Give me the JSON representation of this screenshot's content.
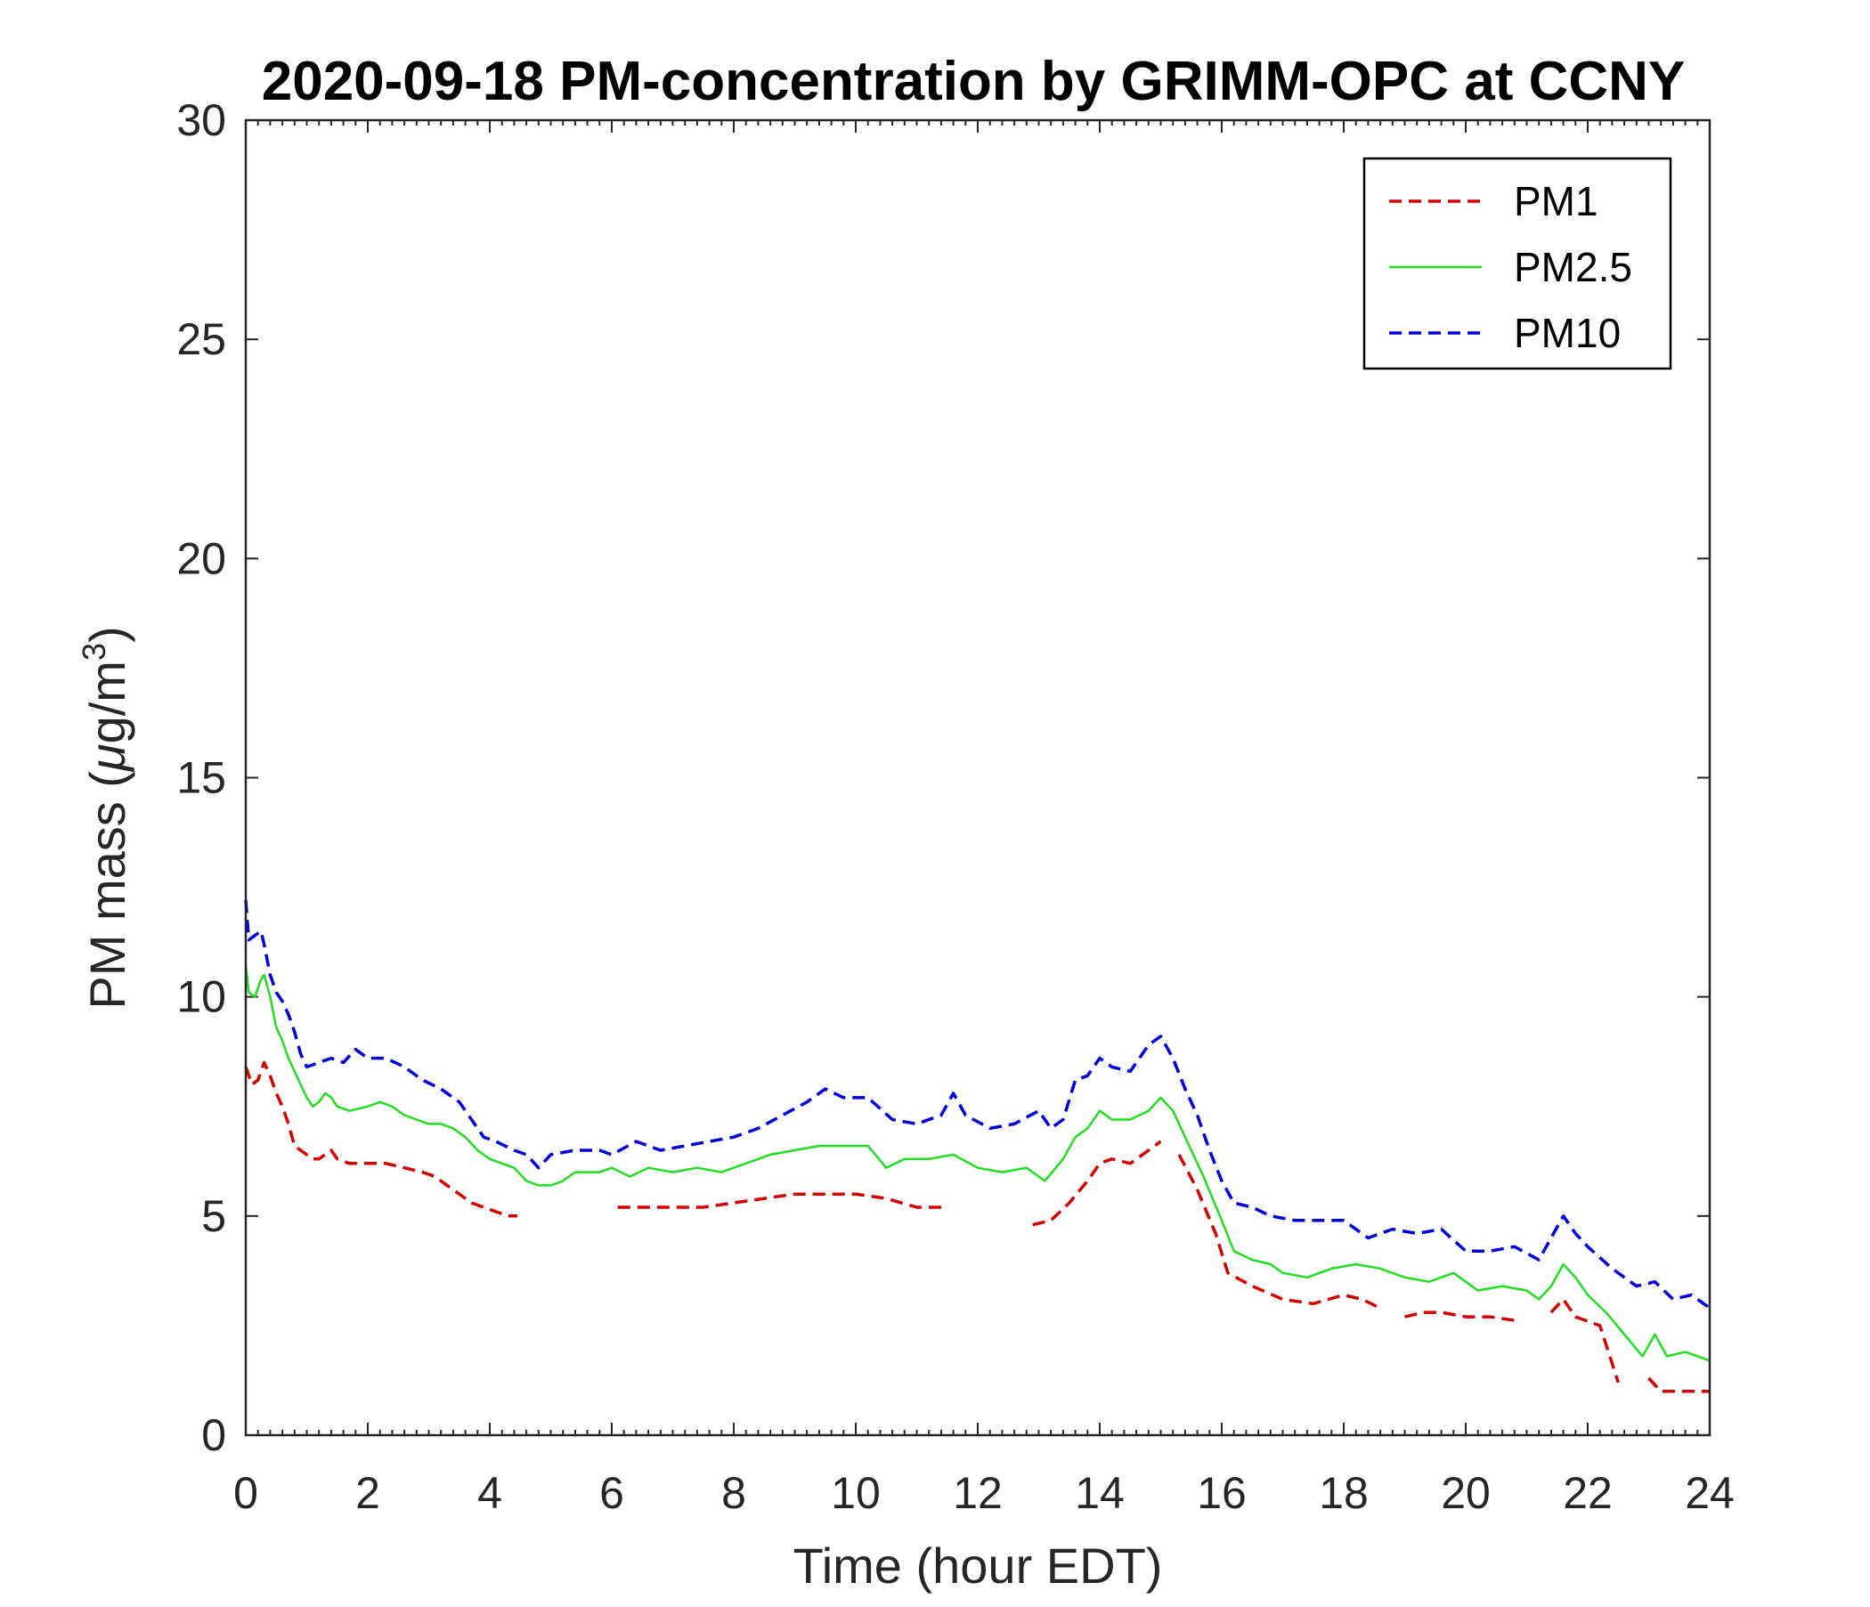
{
  "chart_data": {
    "type": "line",
    "title": "2020-09-18 PM-concentration by GRIMM-OPC at CCNY",
    "xlabel": "Time (hour EDT)",
    "ylabel": "PM mass (μg/m3)",
    "ylabel_parts": {
      "main": "PM mass (",
      "mu": "μ",
      "unit": "g/m",
      "sup": "3",
      "close": ")"
    },
    "xlim": [
      0,
      24
    ],
    "ylim": [
      0,
      30
    ],
    "xticks": [
      0,
      2,
      4,
      6,
      8,
      10,
      12,
      14,
      16,
      18,
      20,
      22,
      24
    ],
    "yticks": [
      0,
      5,
      10,
      15,
      20,
      25,
      30
    ],
    "grid": false,
    "legend_position": "top-right",
    "series": [
      {
        "name": "PM1",
        "color": "#d40000",
        "style": "dashed",
        "segments": [
          [
            [
              0,
              8.4
            ],
            [
              0.1,
              8.0
            ],
            [
              0.2,
              8.1
            ],
            [
              0.3,
              8.5
            ],
            [
              0.4,
              8.2
            ],
            [
              0.5,
              7.8
            ],
            [
              0.6,
              7.5
            ],
            [
              0.7,
              7.1
            ],
            [
              0.8,
              6.6
            ],
            [
              0.9,
              6.5
            ],
            [
              1.0,
              6.4
            ],
            [
              1.1,
              6.3
            ],
            [
              1.2,
              6.3
            ],
            [
              1.3,
              6.4
            ],
            [
              1.4,
              6.5
            ],
            [
              1.5,
              6.3
            ],
            [
              1.7,
              6.2
            ],
            [
              2.0,
              6.2
            ],
            [
              2.3,
              6.2
            ],
            [
              2.6,
              6.1
            ],
            [
              2.9,
              6.0
            ],
            [
              3.1,
              5.9
            ],
            [
              3.3,
              5.7
            ],
            [
              3.5,
              5.5
            ],
            [
              3.7,
              5.3
            ],
            [
              3.9,
              5.2
            ],
            [
              4.1,
              5.1
            ],
            [
              4.3,
              5.0
            ],
            [
              4.45,
              5.0
            ]
          ],
          [
            [
              6.1,
              5.2
            ],
            [
              6.5,
              5.2
            ],
            [
              7.0,
              5.2
            ],
            [
              7.5,
              5.2
            ],
            [
              8.0,
              5.3
            ],
            [
              8.5,
              5.4
            ],
            [
              9.0,
              5.5
            ],
            [
              9.5,
              5.5
            ],
            [
              10.0,
              5.5
            ],
            [
              10.5,
              5.4
            ],
            [
              11.0,
              5.2
            ],
            [
              11.5,
              5.2
            ]
          ],
          [
            [
              12.9,
              4.8
            ],
            [
              13.2,
              4.9
            ],
            [
              13.5,
              5.3
            ],
            [
              13.8,
              5.8
            ],
            [
              14.0,
              6.2
            ],
            [
              14.2,
              6.3
            ],
            [
              14.5,
              6.2
            ],
            [
              14.8,
              6.5
            ],
            [
              15.0,
              6.7
            ]
          ],
          [
            [
              15.3,
              6.4
            ],
            [
              15.6,
              5.6
            ],
            [
              15.9,
              4.6
            ],
            [
              16.1,
              3.7
            ],
            [
              16.5,
              3.4
            ],
            [
              17.0,
              3.1
            ],
            [
              17.5,
              3.0
            ],
            [
              18.0,
              3.2
            ],
            [
              18.3,
              3.1
            ],
            [
              18.6,
              2.9
            ]
          ],
          [
            [
              19.0,
              2.7
            ],
            [
              19.3,
              2.8
            ],
            [
              19.6,
              2.8
            ],
            [
              20.0,
              2.7
            ],
            [
              20.4,
              2.7
            ],
            [
              20.9,
              2.6
            ]
          ],
          [
            [
              21.4,
              2.8
            ],
            [
              21.6,
              3.1
            ],
            [
              21.8,
              2.7
            ],
            [
              22.0,
              2.6
            ],
            [
              22.2,
              2.5
            ],
            [
              22.5,
              1.2
            ]
          ],
          [
            [
              23.0,
              1.3
            ],
            [
              23.2,
              1.0
            ],
            [
              23.5,
              1.0
            ],
            [
              23.8,
              1.0
            ],
            [
              24.0,
              1.0
            ]
          ]
        ]
      },
      {
        "name": "PM2.5",
        "color": "#22dd22",
        "style": "solid",
        "segments": [
          [
            [
              0,
              10.7
            ],
            [
              0.05,
              10.1
            ],
            [
              0.15,
              10.0
            ],
            [
              0.25,
              10.4
            ],
            [
              0.3,
              10.5
            ],
            [
              0.4,
              10.0
            ],
            [
              0.5,
              9.3
            ],
            [
              0.6,
              9.0
            ],
            [
              0.7,
              8.6
            ],
            [
              0.8,
              8.3
            ],
            [
              0.9,
              8.0
            ],
            [
              1.0,
              7.7
            ],
            [
              1.1,
              7.5
            ],
            [
              1.2,
              7.6
            ],
            [
              1.3,
              7.8
            ],
            [
              1.4,
              7.7
            ],
            [
              1.5,
              7.5
            ],
            [
              1.7,
              7.4
            ],
            [
              2.0,
              7.5
            ],
            [
              2.2,
              7.6
            ],
            [
              2.4,
              7.5
            ],
            [
              2.6,
              7.3
            ],
            [
              2.8,
              7.2
            ],
            [
              3.0,
              7.1
            ],
            [
              3.2,
              7.1
            ],
            [
              3.4,
              7.0
            ],
            [
              3.6,
              6.8
            ],
            [
              3.8,
              6.5
            ],
            [
              4.0,
              6.3
            ],
            [
              4.2,
              6.2
            ],
            [
              4.4,
              6.1
            ],
            [
              4.6,
              5.8
            ],
            [
              4.8,
              5.7
            ],
            [
              5.0,
              5.7
            ],
            [
              5.2,
              5.8
            ],
            [
              5.4,
              6.0
            ],
            [
              5.6,
              6.0
            ],
            [
              5.8,
              6.0
            ],
            [
              6.0,
              6.1
            ],
            [
              6.3,
              5.9
            ],
            [
              6.6,
              6.1
            ],
            [
              7.0,
              6.0
            ],
            [
              7.4,
              6.1
            ],
            [
              7.8,
              6.0
            ],
            [
              8.2,
              6.2
            ],
            [
              8.6,
              6.4
            ],
            [
              9.0,
              6.5
            ],
            [
              9.4,
              6.6
            ],
            [
              9.8,
              6.6
            ],
            [
              10.2,
              6.6
            ],
            [
              10.5,
              6.1
            ],
            [
              10.8,
              6.3
            ],
            [
              11.2,
              6.3
            ],
            [
              11.6,
              6.4
            ],
            [
              12.0,
              6.1
            ],
            [
              12.4,
              6.0
            ],
            [
              12.8,
              6.1
            ],
            [
              13.1,
              5.8
            ],
            [
              13.4,
              6.3
            ],
            [
              13.6,
              6.8
            ],
            [
              13.8,
              7.0
            ],
            [
              14.0,
              7.4
            ],
            [
              14.2,
              7.2
            ],
            [
              14.5,
              7.2
            ],
            [
              14.8,
              7.4
            ],
            [
              15.0,
              7.7
            ],
            [
              15.2,
              7.4
            ],
            [
              15.4,
              6.8
            ],
            [
              15.7,
              5.9
            ],
            [
              16.0,
              4.9
            ],
            [
              16.2,
              4.2
            ],
            [
              16.5,
              4.0
            ],
            [
              16.8,
              3.9
            ],
            [
              17.0,
              3.7
            ],
            [
              17.4,
              3.6
            ],
            [
              17.8,
              3.8
            ],
            [
              18.2,
              3.9
            ],
            [
              18.6,
              3.8
            ],
            [
              19.0,
              3.6
            ],
            [
              19.4,
              3.5
            ],
            [
              19.8,
              3.7
            ],
            [
              20.2,
              3.3
            ],
            [
              20.6,
              3.4
            ],
            [
              21.0,
              3.3
            ],
            [
              21.2,
              3.1
            ],
            [
              21.4,
              3.4
            ],
            [
              21.6,
              3.9
            ],
            [
              21.8,
              3.6
            ],
            [
              22.0,
              3.2
            ],
            [
              22.3,
              2.8
            ],
            [
              22.6,
              2.3
            ],
            [
              22.9,
              1.8
            ],
            [
              23.1,
              2.3
            ],
            [
              23.3,
              1.8
            ],
            [
              23.6,
              1.9
            ],
            [
              24.0,
              1.7
            ]
          ]
        ]
      },
      {
        "name": "PM10",
        "color": "#0000dd",
        "style": "dashed",
        "segments": [
          [
            [
              0,
              12.2
            ],
            [
              0.05,
              11.3
            ],
            [
              0.15,
              11.4
            ],
            [
              0.25,
              11.5
            ],
            [
              0.3,
              11.2
            ],
            [
              0.4,
              10.5
            ],
            [
              0.5,
              10.1
            ],
            [
              0.6,
              9.9
            ],
            [
              0.7,
              9.6
            ],
            [
              0.8,
              9.2
            ],
            [
              0.9,
              8.7
            ],
            [
              1.0,
              8.4
            ],
            [
              1.2,
              8.5
            ],
            [
              1.4,
              8.6
            ],
            [
              1.6,
              8.5
            ],
            [
              1.8,
              8.8
            ],
            [
              2.0,
              8.6
            ],
            [
              2.3,
              8.6
            ],
            [
              2.6,
              8.4
            ],
            [
              2.9,
              8.1
            ],
            [
              3.2,
              7.9
            ],
            [
              3.5,
              7.6
            ],
            [
              3.7,
              7.2
            ],
            [
              3.9,
              6.8
            ],
            [
              4.1,
              6.7
            ],
            [
              4.4,
              6.5
            ],
            [
              4.6,
              6.4
            ],
            [
              4.8,
              6.1
            ],
            [
              5.0,
              6.4
            ],
            [
              5.4,
              6.5
            ],
            [
              5.8,
              6.5
            ],
            [
              6.0,
              6.4
            ],
            [
              6.4,
              6.7
            ],
            [
              6.8,
              6.5
            ],
            [
              7.2,
              6.6
            ],
            [
              7.6,
              6.7
            ],
            [
              8.0,
              6.8
            ],
            [
              8.4,
              7.0
            ],
            [
              8.8,
              7.3
            ],
            [
              9.2,
              7.6
            ],
            [
              9.5,
              7.9
            ],
            [
              9.8,
              7.7
            ],
            [
              10.2,
              7.7
            ],
            [
              10.6,
              7.2
            ],
            [
              11.0,
              7.1
            ],
            [
              11.4,
              7.3
            ],
            [
              11.6,
              7.8
            ],
            [
              11.8,
              7.3
            ],
            [
              12.2,
              7.0
            ],
            [
              12.6,
              7.1
            ],
            [
              13.0,
              7.4
            ],
            [
              13.2,
              7.0
            ],
            [
              13.4,
              7.2
            ],
            [
              13.6,
              8.1
            ],
            [
              13.8,
              8.2
            ],
            [
              14.0,
              8.6
            ],
            [
              14.2,
              8.4
            ],
            [
              14.5,
              8.3
            ],
            [
              14.8,
              8.9
            ],
            [
              15.0,
              9.1
            ],
            [
              15.2,
              8.6
            ],
            [
              15.4,
              7.9
            ],
            [
              15.6,
              7.3
            ],
            [
              15.8,
              6.5
            ],
            [
              16.0,
              5.8
            ],
            [
              16.2,
              5.3
            ],
            [
              16.5,
              5.2
            ],
            [
              16.8,
              5.0
            ],
            [
              17.2,
              4.9
            ],
            [
              17.6,
              4.9
            ],
            [
              18.0,
              4.9
            ],
            [
              18.4,
              4.5
            ],
            [
              18.8,
              4.7
            ],
            [
              19.2,
              4.6
            ],
            [
              19.6,
              4.7
            ],
            [
              20.0,
              4.2
            ],
            [
              20.4,
              4.2
            ],
            [
              20.8,
              4.3
            ],
            [
              21.2,
              4.0
            ],
            [
              21.4,
              4.5
            ],
            [
              21.6,
              5.0
            ],
            [
              21.8,
              4.6
            ],
            [
              22.0,
              4.3
            ],
            [
              22.4,
              3.8
            ],
            [
              22.8,
              3.4
            ],
            [
              23.1,
              3.5
            ],
            [
              23.4,
              3.1
            ],
            [
              23.7,
              3.2
            ],
            [
              24.0,
              2.9
            ]
          ]
        ]
      }
    ]
  }
}
